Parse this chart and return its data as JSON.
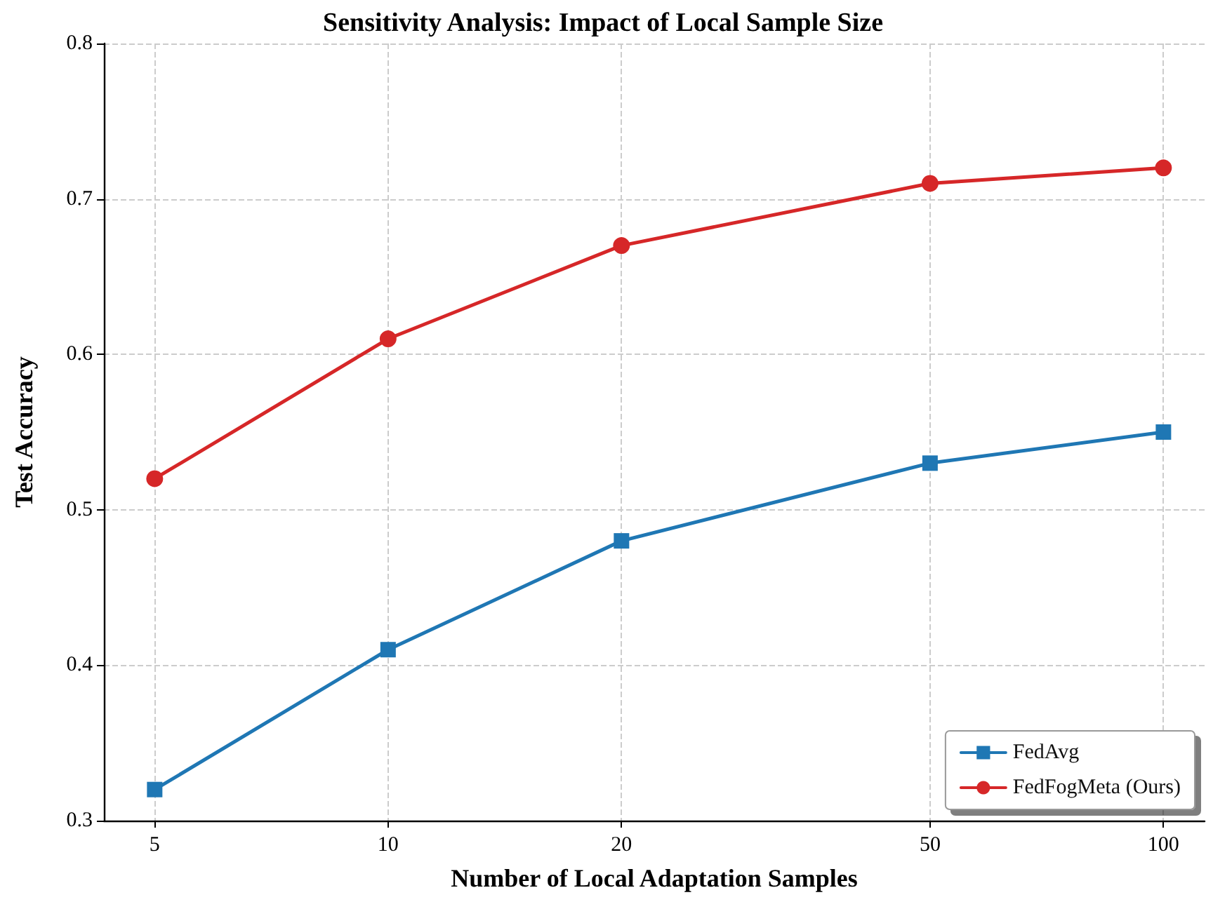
{
  "chart_data": {
    "type": "line",
    "title": "Sensitivity Analysis: Impact of Local Sample Size",
    "xlabel": "Number of Local Adaptation Samples",
    "ylabel": "Test Accuracy",
    "x": [
      5,
      10,
      20,
      50,
      100
    ],
    "series": [
      {
        "name": "FedAvg",
        "color": "#1f77b4",
        "marker": "square",
        "values": [
          0.32,
          0.41,
          0.48,
          0.53,
          0.55
        ]
      },
      {
        "name": "FedFogMeta (Ours)",
        "color": "#d62728",
        "marker": "circle",
        "values": [
          0.52,
          0.61,
          0.67,
          0.71,
          0.72
        ]
      }
    ],
    "log": "x",
    "xlim": [
      4.3,
      113
    ],
    "xticks": [
      5,
      10,
      20,
      50,
      100
    ],
    "ylim": [
      0.3,
      0.8
    ],
    "yticks": [
      0.3,
      0.4,
      0.5,
      0.6,
      0.7,
      0.8
    ],
    "grid": true,
    "legend": "bottom right",
    "line_style": "solid"
  }
}
